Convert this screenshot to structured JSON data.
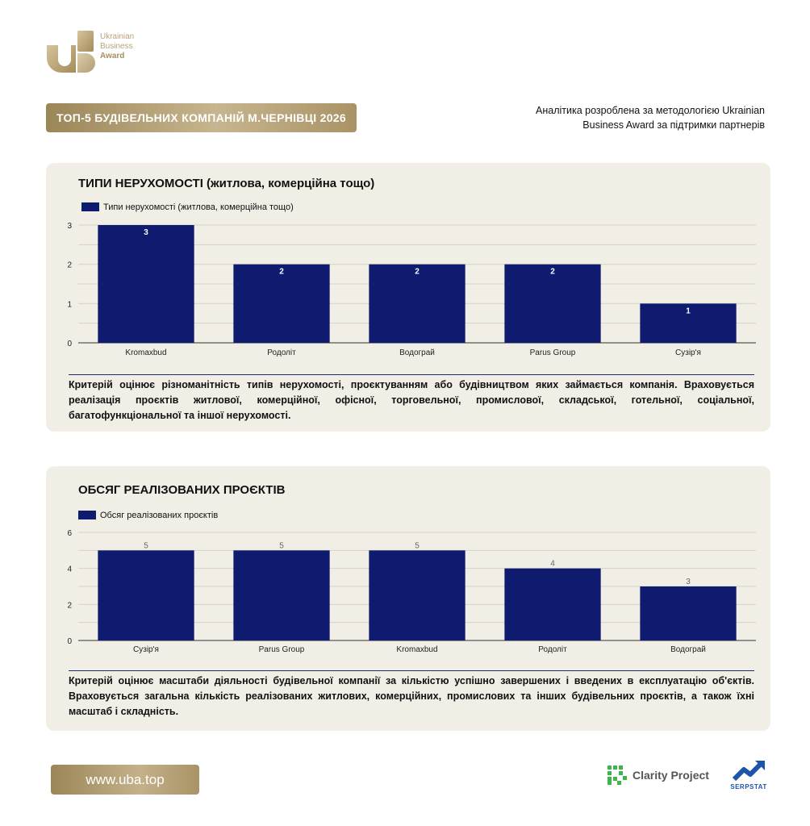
{
  "brand": {
    "logo_line1": "Ukrainian",
    "logo_line2": "Business",
    "logo_line3": "Award",
    "gold": "#b09a6b"
  },
  "header": {
    "title": "ТОП-5 БУДІВЕЛЬНИХ КОМПАНІЙ М.ЧЕРНІВЦІ 2026",
    "intro_line1": "Аналітика розроблена за методологією Ukrainian",
    "intro_line2": "Business Award за підтримки партнерів"
  },
  "sections": [
    {
      "title": "ТИПИ НЕРУХОМОСТІ (житлова, комерційна тощо)",
      "description": "Критерій оцінює різноманітність типів нерухомості, проєктуванням або будівництвом яких займається компанія. Враховується реалізація проєктів житлової, комерційної, офісної, торговельної, промислової, складської, готельної, соціальної, багатофункціональної та іншої нерухомості."
    },
    {
      "title": "ОБСЯГ РЕАЛІЗОВАНИХ ПРОЄКТІВ",
      "description": "Критерій оцінює масштаби діяльності будівельної компанії за кількістю успішно завершених і введених в експлуатацію об'єктів. Враховується загальна кількість реалізованих житлових, комерційних, промислових та інших будівельних проєктів, а також їхні масштаб і складність."
    }
  ],
  "chart_data": [
    {
      "type": "bar",
      "categories": [
        "Kromaxbud",
        "Родоліт",
        "Водограй",
        "Parus Group",
        "Сузір'я"
      ],
      "series": [
        {
          "name": "Типи нерухомості (житлова, комерційна тощо)",
          "values": [
            3,
            2,
            2,
            2,
            1
          ]
        }
      ],
      "ylim": [
        0,
        3
      ],
      "yticks": [
        0,
        1,
        2,
        3
      ],
      "grid": true,
      "legend": "top-left",
      "bar_color": "#0f1b6e",
      "label_position": "inside"
    },
    {
      "type": "bar",
      "categories": [
        "Сузір'я",
        "Parus Group",
        "Kromaxbud",
        "Родоліт",
        "Водограй"
      ],
      "series": [
        {
          "name": "Обсяг реалізованих проєктів",
          "values": [
            5,
            5,
            5,
            4,
            3
          ]
        }
      ],
      "ylim": [
        0,
        6
      ],
      "yticks": [
        0,
        2,
        4,
        6
      ],
      "grid": true,
      "legend": "top-left",
      "bar_color": "#0f1b6e",
      "label_position": "above"
    }
  ],
  "footer": {
    "url": "www.uba.top",
    "partner1": "Clarity Project",
    "partner2": "SERPSTAT"
  }
}
